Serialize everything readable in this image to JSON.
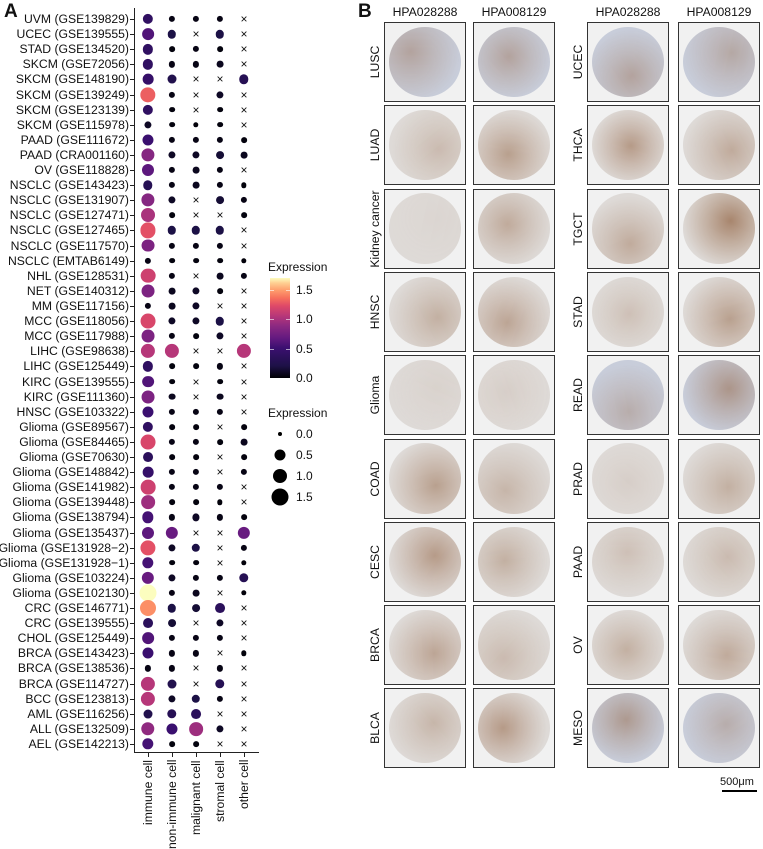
{
  "panels": {
    "a_letter": "A",
    "b_letter": "B"
  },
  "chart_data": {
    "type": "dotplot",
    "title": "",
    "xlabel": "",
    "ylabel": "",
    "categories_x": [
      "immune cell",
      "non-immune cell",
      "malignant cell",
      "stromal cell",
      "other cell"
    ],
    "categories_y": [
      "UVM (GSE139829)",
      "UCEC (GSE139555)",
      "STAD (GSE134520)",
      "SKCM (GSE72056)",
      "SKCM (GSE148190)",
      "SKCM (GSE139249)",
      "SKCM (GSE123139)",
      "SKCM (GSE115978)",
      "PAAD (GSE111672)",
      "PAAD (CRA001160)",
      "OV (GSE118828)",
      "NSCLC (GSE143423)",
      "NSCLC (GSE131907)",
      "NSCLC (GSE127471)",
      "NSCLC (GSE127465)",
      "NSCLC (GSE117570)",
      "NSCLC (EMTAB6149)",
      "NHL (GSE128531)",
      "NET (GSE140312)",
      "MM (GSE117156)",
      "MCC (GSE118056)",
      "MCC (GSE117988)",
      "LIHC (GSE98638)",
      "LIHC (GSE125449)",
      "KIRC (GSE139555)",
      "KIRC (GSE111360)",
      "HNSC (GSE103322)",
      "Glioma (GSE89567)",
      "Glioma (GSE84465)",
      "Glioma (GSE70630)",
      "Glioma (GSE148842)",
      "Glioma (GSE141982)",
      "Glioma (GSE139448)",
      "Glioma (GSE138794)",
      "Glioma (GSE135437)",
      "Glioma (GSE131928−2)",
      "Glioma (GSE131928−1)",
      "Glioma (GSE103224)",
      "Glioma (GSE102130)",
      "CRC (GSE146771)",
      "CRC (GSE139555)",
      "CHOL (GSE125449)",
      "BRCA (GSE143423)",
      "BRCA (GSE138536)",
      "BRCA (GSE114727)",
      "BCC (GSE123813)",
      "AML (GSE116256)",
      "ALL (GSE132509)",
      "AEL (GSE142213)"
    ],
    "note": "values = expression (0-1.7); null = not present (x marker)",
    "values": [
      [
        0.4,
        0.05,
        0.05,
        0.05,
        null
      ],
      [
        0.6,
        0.2,
        null,
        0.2,
        null
      ],
      [
        0.4,
        0.03,
        0.05,
        0.03,
        null
      ],
      [
        0.4,
        0.05,
        0.05,
        0.08,
        null
      ],
      [
        0.45,
        0.25,
        null,
        null,
        0.3
      ],
      [
        1.3,
        0.05,
        null,
        0.1,
        null
      ],
      [
        0.4,
        0.03,
        null,
        0.03,
        null
      ],
      [
        0.1,
        0.03,
        0.02,
        0.03,
        null
      ],
      [
        0.5,
        0.05,
        0.05,
        0.05,
        0.03
      ],
      [
        0.85,
        0.1,
        0.1,
        0.15,
        0.08
      ],
      [
        0.65,
        0.05,
        0.08,
        0.05,
        null
      ],
      [
        0.3,
        0.05,
        0.08,
        0.05,
        0.02
      ],
      [
        0.85,
        0.1,
        null,
        0.15,
        0.05
      ],
      [
        1.0,
        0.03,
        null,
        null,
        0.03
      ],
      [
        1.25,
        0.2,
        0.2,
        0.2,
        null
      ],
      [
        0.8,
        0.05,
        0.05,
        0.05,
        null
      ],
      [
        0.05,
        0.03,
        0.03,
        0.03,
        0.02
      ],
      [
        1.15,
        0.05,
        null,
        0.08,
        0.05
      ],
      [
        0.8,
        0.08,
        0.1,
        0.03,
        null
      ],
      [
        0.05,
        0.08,
        0.1,
        null,
        null
      ],
      [
        1.2,
        0.1,
        0.1,
        0.2,
        null
      ],
      [
        0.8,
        0.05,
        0.03,
        0.1,
        null
      ],
      [
        1.05,
        1.05,
        null,
        null,
        1.05
      ],
      [
        0.4,
        0.03,
        0.03,
        0.05,
        null
      ],
      [
        0.6,
        0.03,
        null,
        0.03,
        null
      ],
      [
        0.8,
        0.08,
        null,
        0.08,
        null
      ],
      [
        0.5,
        0.05,
        0.05,
        0.05,
        null
      ],
      [
        0.4,
        0.03,
        0.03,
        null,
        0.03
      ],
      [
        1.2,
        0.05,
        0.05,
        0.03,
        0.08
      ],
      [
        0.35,
        0.03,
        0.03,
        null,
        0.03
      ],
      [
        0.45,
        0.05,
        0.05,
        null,
        0.05
      ],
      [
        1.15,
        0.05,
        0.05,
        0.05,
        null
      ],
      [
        0.95,
        0.03,
        0.03,
        0.02,
        null
      ],
      [
        0.55,
        0.05,
        0.1,
        0.05,
        0.03
      ],
      [
        0.65,
        0.7,
        null,
        null,
        0.7
      ],
      [
        1.25,
        0.1,
        0.2,
        null,
        0.05
      ],
      [
        0.55,
        0.03,
        0.03,
        null,
        0.02
      ],
      [
        0.7,
        0.1,
        0.05,
        0.05,
        0.3
      ],
      [
        1.7,
        0.05,
        0.08,
        null,
        0.02
      ],
      [
        1.45,
        0.2,
        0.15,
        0.35,
        null
      ],
      [
        0.35,
        0.15,
        null,
        0.1,
        null
      ],
      [
        0.6,
        0.05,
        0.05,
        0.05,
        null
      ],
      [
        0.5,
        0.05,
        0.05,
        null,
        0.02
      ],
      [
        0.05,
        0.05,
        null,
        0.05,
        null
      ],
      [
        1.05,
        0.25,
        null,
        0.3,
        null
      ],
      [
        1.05,
        0.1,
        0.2,
        0.05,
        null
      ],
      [
        0.25,
        0.3,
        0.35,
        null,
        null
      ],
      [
        0.9,
        0.5,
        0.95,
        0.1,
        null
      ],
      [
        0.55,
        0.03,
        0.03,
        null,
        null
      ]
    ],
    "color_legend": {
      "title": "Expression",
      "ticks": [
        "1.5",
        "1.0",
        "0.5",
        "0.0"
      ],
      "range": [
        0,
        1.7
      ],
      "colormap": "magma"
    },
    "size_legend": {
      "title": "Expression",
      "ticks": [
        "0.0",
        "0.5",
        "1.0",
        "1.5"
      ]
    },
    "grid": false
  },
  "panelB": {
    "left_group": {
      "headers": [
        "HPA028288",
        "HPA008129"
      ],
      "rows": [
        "LUSC",
        "LUAD",
        "Kidney cancer",
        "HNSC",
        "Glioma",
        "COAD",
        "CESC",
        "BRCA",
        "BLCA"
      ],
      "stain_left": [
        0.45,
        0.3,
        0.05,
        0.4,
        0.08,
        0.55,
        0.6,
        0.5,
        0.35
      ],
      "stain_right": [
        0.45,
        0.55,
        0.45,
        0.5,
        0.12,
        0.35,
        0.4,
        0.3,
        0.6
      ]
    },
    "right_group": {
      "headers": [
        "HPA028288",
        "HPA008129"
      ],
      "rows": [
        "UCEC",
        "THCA",
        "TGCT",
        "STAD",
        "READ",
        "PRAD",
        "PAAD",
        "OV",
        "MESO"
      ],
      "stain_left": [
        0.45,
        0.6,
        0.45,
        0.25,
        0.35,
        0.12,
        0.25,
        0.4,
        0.55
      ],
      "stain_right": [
        0.4,
        0.45,
        0.8,
        0.55,
        0.6,
        0.4,
        0.3,
        0.45,
        0.35
      ]
    },
    "scale_bar": "500μm"
  }
}
